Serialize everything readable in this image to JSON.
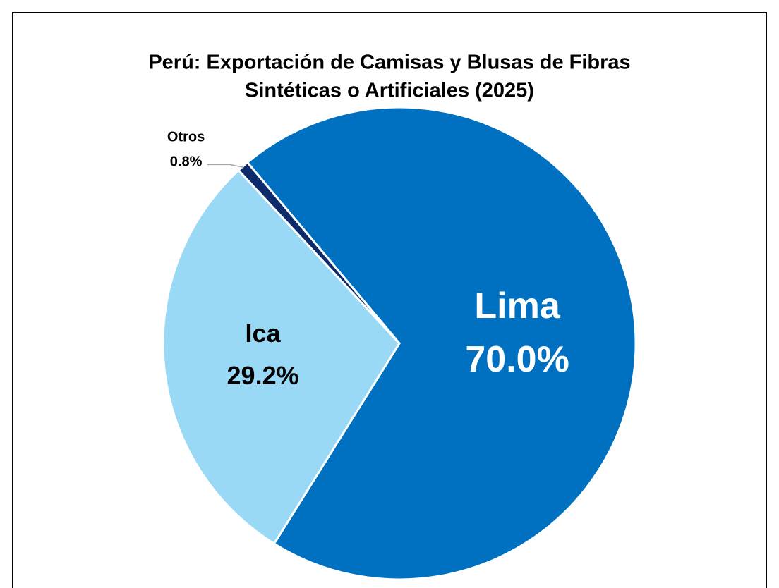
{
  "chart_data": {
    "type": "pie",
    "title": [
      "Perú: Exportación de Camisas y Blusas de Fibras",
      "Sintéticas o Artificiales (2025)"
    ],
    "categories": [
      "Lima",
      "Ica",
      "Otros"
    ],
    "values": [
      70.0,
      29.2,
      0.8
    ],
    "value_labels": [
      "70.0%",
      "29.2%",
      "0.8%"
    ],
    "colors": [
      "#0070c0",
      "#99d9f6",
      "#0d2a6b"
    ]
  }
}
